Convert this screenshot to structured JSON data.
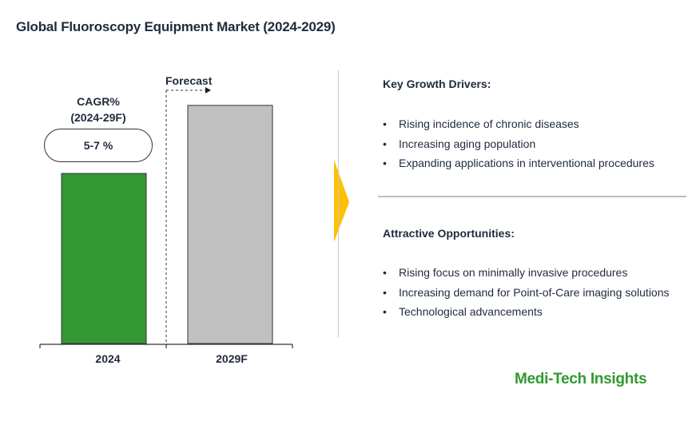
{
  "title": "Global Fluoroscopy Equipment Market (2024-2029)",
  "cagr": {
    "label_line1": "CAGR%",
    "label_line2": "(2024-29F)",
    "value": "5-7 %"
  },
  "forecast_label": "Forecast",
  "colors": {
    "bar_2024": "#339933",
    "bar_2029": "#c0c0c0",
    "arrow": "#ffc000",
    "brand": "#2f9a2f"
  },
  "chart_data": {
    "type": "bar",
    "categories": [
      "2024",
      "2029F"
    ],
    "values": [
      1.0,
      1.4
    ],
    "title": "Global Fluoroscopy Equipment Market (2024-2029)",
    "xlabel": "",
    "ylabel": "",
    "ylim": [
      0,
      1.55
    ],
    "grid": false,
    "legend": "none",
    "axis_values_shown": false
  },
  "drivers": {
    "title": "Key Growth Drivers:",
    "items": [
      "Rising incidence of chronic diseases",
      "Increasing aging population",
      "Expanding applications in interventional procedures"
    ]
  },
  "opportunities": {
    "title": "Attractive Opportunities:",
    "items": [
      "Rising focus on minimally invasive procedures",
      "Increasing demand for Point-of-Care imaging solutions",
      "Technological  advancements"
    ]
  },
  "brand": "Medi-Tech Insights"
}
